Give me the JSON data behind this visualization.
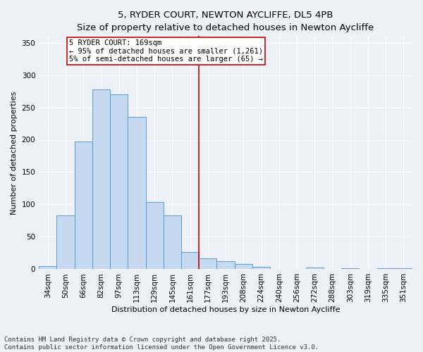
{
  "title": "5, RYDER COURT, NEWTON AYCLIFFE, DL5 4PB",
  "subtitle": "Size of property relative to detached houses in Newton Aycliffe",
  "xlabel": "Distribution of detached houses by size in Newton Aycliffe",
  "ylabel": "Number of detached properties",
  "categories": [
    "34sqm",
    "50sqm",
    "66sqm",
    "82sqm",
    "97sqm",
    "113sqm",
    "129sqm",
    "145sqm",
    "161sqm",
    "177sqm",
    "193sqm",
    "208sqm",
    "224sqm",
    "240sqm",
    "256sqm",
    "272sqm",
    "288sqm",
    "303sqm",
    "319sqm",
    "335sqm",
    "351sqm"
  ],
  "values": [
    5,
    83,
    197,
    278,
    270,
    235,
    104,
    83,
    27,
    17,
    13,
    8,
    4,
    1,
    0,
    3,
    0,
    2,
    0,
    2,
    2
  ],
  "bar_color": "#c5d9f0",
  "bar_edge_color": "#5b9bd5",
  "vline_x": 8.5,
  "vline_color": "#cc0000",
  "annotation_text": "5 RYDER COURT: 169sqm\n← 95% of detached houses are smaller (1,261)\n5% of semi-detached houses are larger (65) →",
  "annotation_box_color": "#ffffff",
  "annotation_box_edge_color": "#cc0000",
  "ylim": [
    0,
    360
  ],
  "yticks": [
    0,
    50,
    100,
    150,
    200,
    250,
    300,
    350
  ],
  "title_fontsize": 9.5,
  "xlabel_fontsize": 8,
  "ylabel_fontsize": 8,
  "tick_fontsize": 7.5,
  "annotation_fontsize": 7.5,
  "footer_text": "Contains HM Land Registry data © Crown copyright and database right 2025.\nContains public sector information licensed under the Open Government Licence v3.0.",
  "footer_fontsize": 6.5,
  "background_color": "#eef2f8"
}
